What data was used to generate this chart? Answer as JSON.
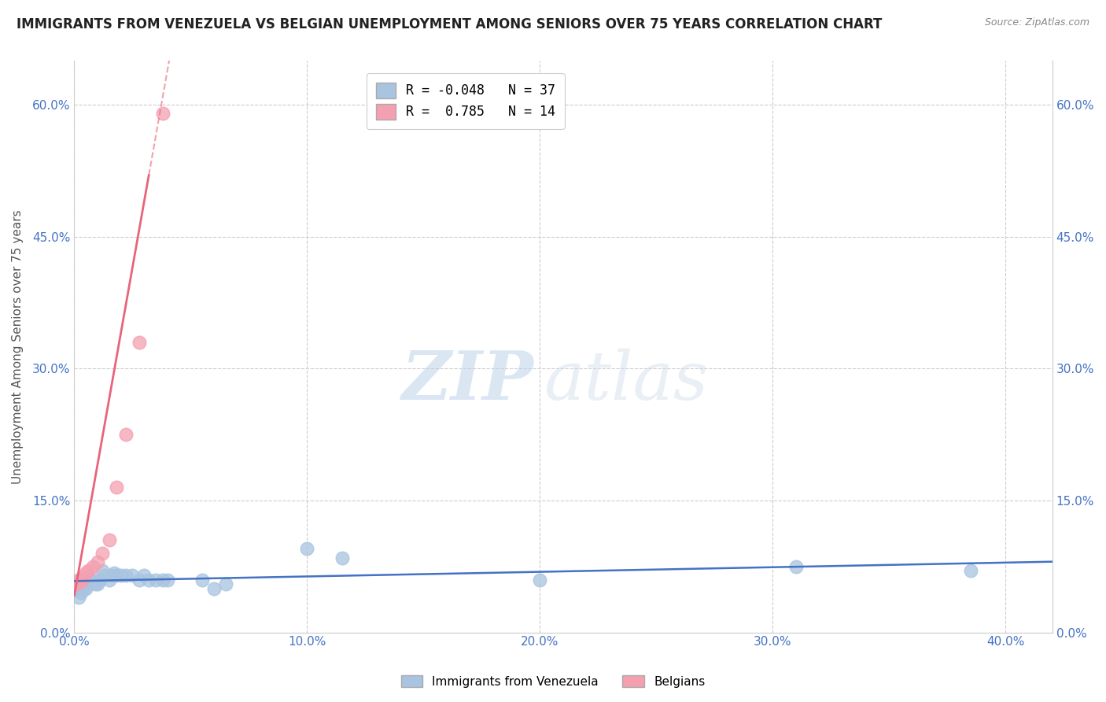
{
  "title": "IMMIGRANTS FROM VENEZUELA VS BELGIAN UNEMPLOYMENT AMONG SENIORS OVER 75 YEARS CORRELATION CHART",
  "source": "Source: ZipAtlas.com",
  "xlabel_tick_vals": [
    0.0,
    0.1,
    0.2,
    0.3,
    0.4
  ],
  "ylabel_tick_vals": [
    0.0,
    0.15,
    0.3,
    0.45,
    0.6
  ],
  "ylabel_label": "Unemployment Among Seniors over 75 years",
  "legend_labels": [
    "Immigrants from Venezuela",
    "Belgians"
  ],
  "blue_color": "#a8c4e0",
  "pink_color": "#f4a0b0",
  "blue_line_color": "#4472c4",
  "pink_line_color": "#e8647a",
  "R_blue": -0.048,
  "N_blue": 37,
  "R_pink": 0.785,
  "N_pink": 14,
  "blue_scatter_x": [
    0.001,
    0.002,
    0.002,
    0.003,
    0.003,
    0.004,
    0.005,
    0.005,
    0.006,
    0.007,
    0.008,
    0.009,
    0.01,
    0.011,
    0.012,
    0.013,
    0.015,
    0.016,
    0.017,
    0.018,
    0.02,
    0.022,
    0.025,
    0.028,
    0.03,
    0.032,
    0.035,
    0.038,
    0.04,
    0.055,
    0.06,
    0.065,
    0.1,
    0.115,
    0.2,
    0.31,
    0.385
  ],
  "blue_scatter_y": [
    0.05,
    0.06,
    0.04,
    0.055,
    0.045,
    0.05,
    0.055,
    0.05,
    0.055,
    0.06,
    0.06,
    0.055,
    0.055,
    0.06,
    0.07,
    0.065,
    0.06,
    0.065,
    0.068,
    0.065,
    0.065,
    0.065,
    0.065,
    0.06,
    0.065,
    0.06,
    0.06,
    0.06,
    0.06,
    0.06,
    0.05,
    0.055,
    0.095,
    0.085,
    0.06,
    0.075,
    0.07
  ],
  "pink_scatter_x": [
    0.001,
    0.002,
    0.003,
    0.004,
    0.005,
    0.006,
    0.008,
    0.01,
    0.012,
    0.015,
    0.018,
    0.022,
    0.028,
    0.038
  ],
  "pink_scatter_y": [
    0.055,
    0.06,
    0.058,
    0.062,
    0.068,
    0.07,
    0.075,
    0.08,
    0.09,
    0.105,
    0.165,
    0.225,
    0.33,
    0.59
  ],
  "pink_line_x0": 0.0,
  "pink_line_y0": 0.042,
  "pink_line_x1": 0.032,
  "pink_line_y1": 0.52,
  "watermark_zip": "ZIP",
  "watermark_atlas": "atlas",
  "background_color": "#ffffff",
  "grid_color": "#cccccc",
  "title_color": "#222222",
  "axis_label_color": "#555555",
  "tick_label_color": "#4472c4",
  "xlim": [
    0.0,
    0.42
  ],
  "ylim": [
    0.0,
    0.65
  ]
}
